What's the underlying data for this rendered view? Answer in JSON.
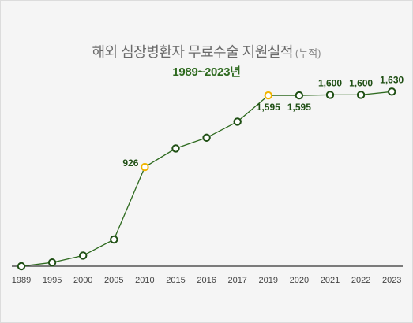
{
  "header": {
    "title": "해외 심장병환자 무료수술 지원실적",
    "title_suffix": "(누적)",
    "subtitle": "1989~2023년"
  },
  "colors": {
    "line": "#2e6a1f",
    "marker": "#1f4f14",
    "highlight": "#f0b400",
    "axis": "#333333"
  },
  "chart_data": {
    "type": "line",
    "title": "해외 심장병환자 무료수술 지원실적 (누적)",
    "subtitle": "1989~2023년",
    "categories": [
      "1989",
      "1995",
      "2000",
      "2005",
      "2010",
      "2015",
      "2016",
      "2017",
      "2019",
      "2020",
      "2021",
      "2022",
      "2023"
    ],
    "values": [
      0,
      35,
      100,
      250,
      926,
      1100,
      1200,
      1350,
      1595,
      1595,
      1600,
      1600,
      1630
    ],
    "labels": [
      "",
      "",
      "",
      "",
      "926",
      "",
      "",
      "",
      "1,595",
      "1,595",
      "1,600",
      "1,600",
      "1,630"
    ],
    "highlighted": [
      "2010",
      "2019"
    ],
    "ylim": [
      0,
      1750
    ],
    "grid": false,
    "xlabel": "",
    "ylabel": ""
  }
}
